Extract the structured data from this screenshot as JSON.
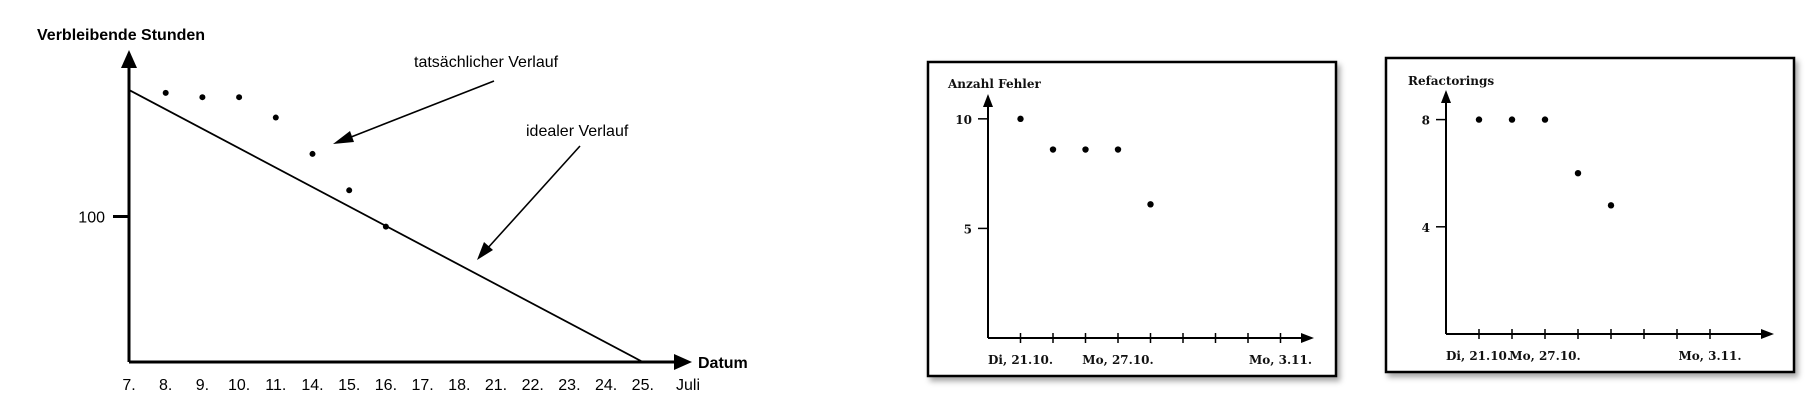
{
  "chart_data": [
    {
      "type": "line",
      "ylabel": "Verbleibende Stunden",
      "xlabel": "Datum",
      "x_unit": "Juli",
      "categories": [
        "7.",
        "8.",
        "9.",
        "10.",
        "11.",
        "14.",
        "15.",
        "16.",
        "17.",
        "18.",
        "21.",
        "22.",
        "23.",
        "24.",
        "25."
      ],
      "yticks": [
        100
      ],
      "ylim": [
        0,
        200
      ],
      "series": [
        {
          "name": "tatsächlicher Verlauf",
          "kind": "scatter",
          "points": [
            [
              1,
              185
            ],
            [
              2,
              182
            ],
            [
              3,
              182
            ],
            [
              4,
              168
            ],
            [
              5,
              143
            ],
            [
              6,
              118
            ],
            [
              7,
              93
            ]
          ]
        },
        {
          "name": "idealer Verlauf",
          "kind": "line",
          "points": [
            [
              0,
              187
            ],
            [
              14,
              0
            ]
          ]
        }
      ],
      "annotations": [
        "tatsächlicher Verlauf",
        "idealer Verlauf"
      ]
    },
    {
      "type": "scatter",
      "ylabel": "Anzahl Fehler",
      "xticklabels": [
        {
          "index": 0,
          "label": "Di, 21.10."
        },
        {
          "index": 4,
          "label": "Mo, 27.10."
        },
        {
          "index": 9,
          "label": "Mo, 3.11."
        }
      ],
      "yticks": [
        5,
        10
      ],
      "ylim": [
        0,
        12
      ],
      "series": [
        {
          "points": [
            [
              1,
              10
            ],
            [
              2,
              8.6
            ],
            [
              3,
              8.6
            ],
            [
              4,
              8.6
            ],
            [
              5,
              6.1
            ]
          ]
        }
      ]
    },
    {
      "type": "scatter",
      "ylabel": "Refactorings",
      "xticklabels": [
        {
          "index": 0,
          "label": "Di, 21.10."
        },
        {
          "index": 3,
          "label": "Mo, 27.10."
        },
        {
          "index": 8,
          "label": "Mo, 3.11."
        }
      ],
      "yticks": [
        4,
        8
      ],
      "ylim": [
        0,
        10
      ],
      "series": [
        {
          "points": [
            [
              1,
              8
            ],
            [
              2,
              8
            ],
            [
              3,
              8
            ],
            [
              4,
              6
            ],
            [
              5,
              4.8
            ]
          ]
        }
      ]
    }
  ]
}
